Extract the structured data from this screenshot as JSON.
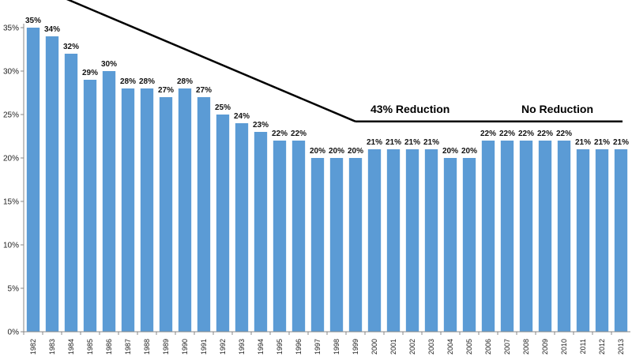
{
  "chart_data": {
    "type": "bar",
    "categories": [
      "1982",
      "1983",
      "1984",
      "1985",
      "1986",
      "1987",
      "1988",
      "1989",
      "1990",
      "1991",
      "1992",
      "1993",
      "1994",
      "1995",
      "1996",
      "1997",
      "1998",
      "1999",
      "2000",
      "2001",
      "2002",
      "2003",
      "2004",
      "2005",
      "2006",
      "2007",
      "2008",
      "2009",
      "2010",
      "2011",
      "2012",
      "2013"
    ],
    "values": [
      35,
      34,
      32,
      29,
      30,
      28,
      28,
      27,
      28,
      27,
      25,
      24,
      23,
      22,
      22,
      20,
      20,
      20,
      21,
      21,
      21,
      21,
      20,
      20,
      22,
      22,
      22,
      22,
      22,
      21,
      21,
      21
    ],
    "data_labels": [
      "35%",
      "34%",
      "32%",
      "29%",
      "30%",
      "28%",
      "28%",
      "27%",
      "28%",
      "27%",
      "25%",
      "24%",
      "23%",
      "22%",
      "22%",
      "20%",
      "20%",
      "20%",
      "21%",
      "21%",
      "21%",
      "21%",
      "20%",
      "20%",
      "22%",
      "22%",
      "22%",
      "22%",
      "22%",
      "21%",
      "21%",
      "21%"
    ],
    "y_ticks": [
      "0%",
      "5%",
      "10%",
      "15%",
      "20%",
      "25%",
      "30%",
      "35%"
    ],
    "ylim": [
      0,
      35
    ],
    "title": "",
    "xlabel": "",
    "ylabel": "",
    "grid": false,
    "bar_color": "#5b9bd5",
    "annotations": [
      {
        "text": "43% Reduction"
      },
      {
        "text": "No Reduction"
      }
    ],
    "trend_lines": [
      {
        "from_x": "1982",
        "from_y": 40,
        "to_x": "1999",
        "to_y": 24.2
      },
      {
        "from_x": "1999",
        "from_y": 24.2,
        "to_x": "2013",
        "to_y": 24.2
      }
    ]
  }
}
